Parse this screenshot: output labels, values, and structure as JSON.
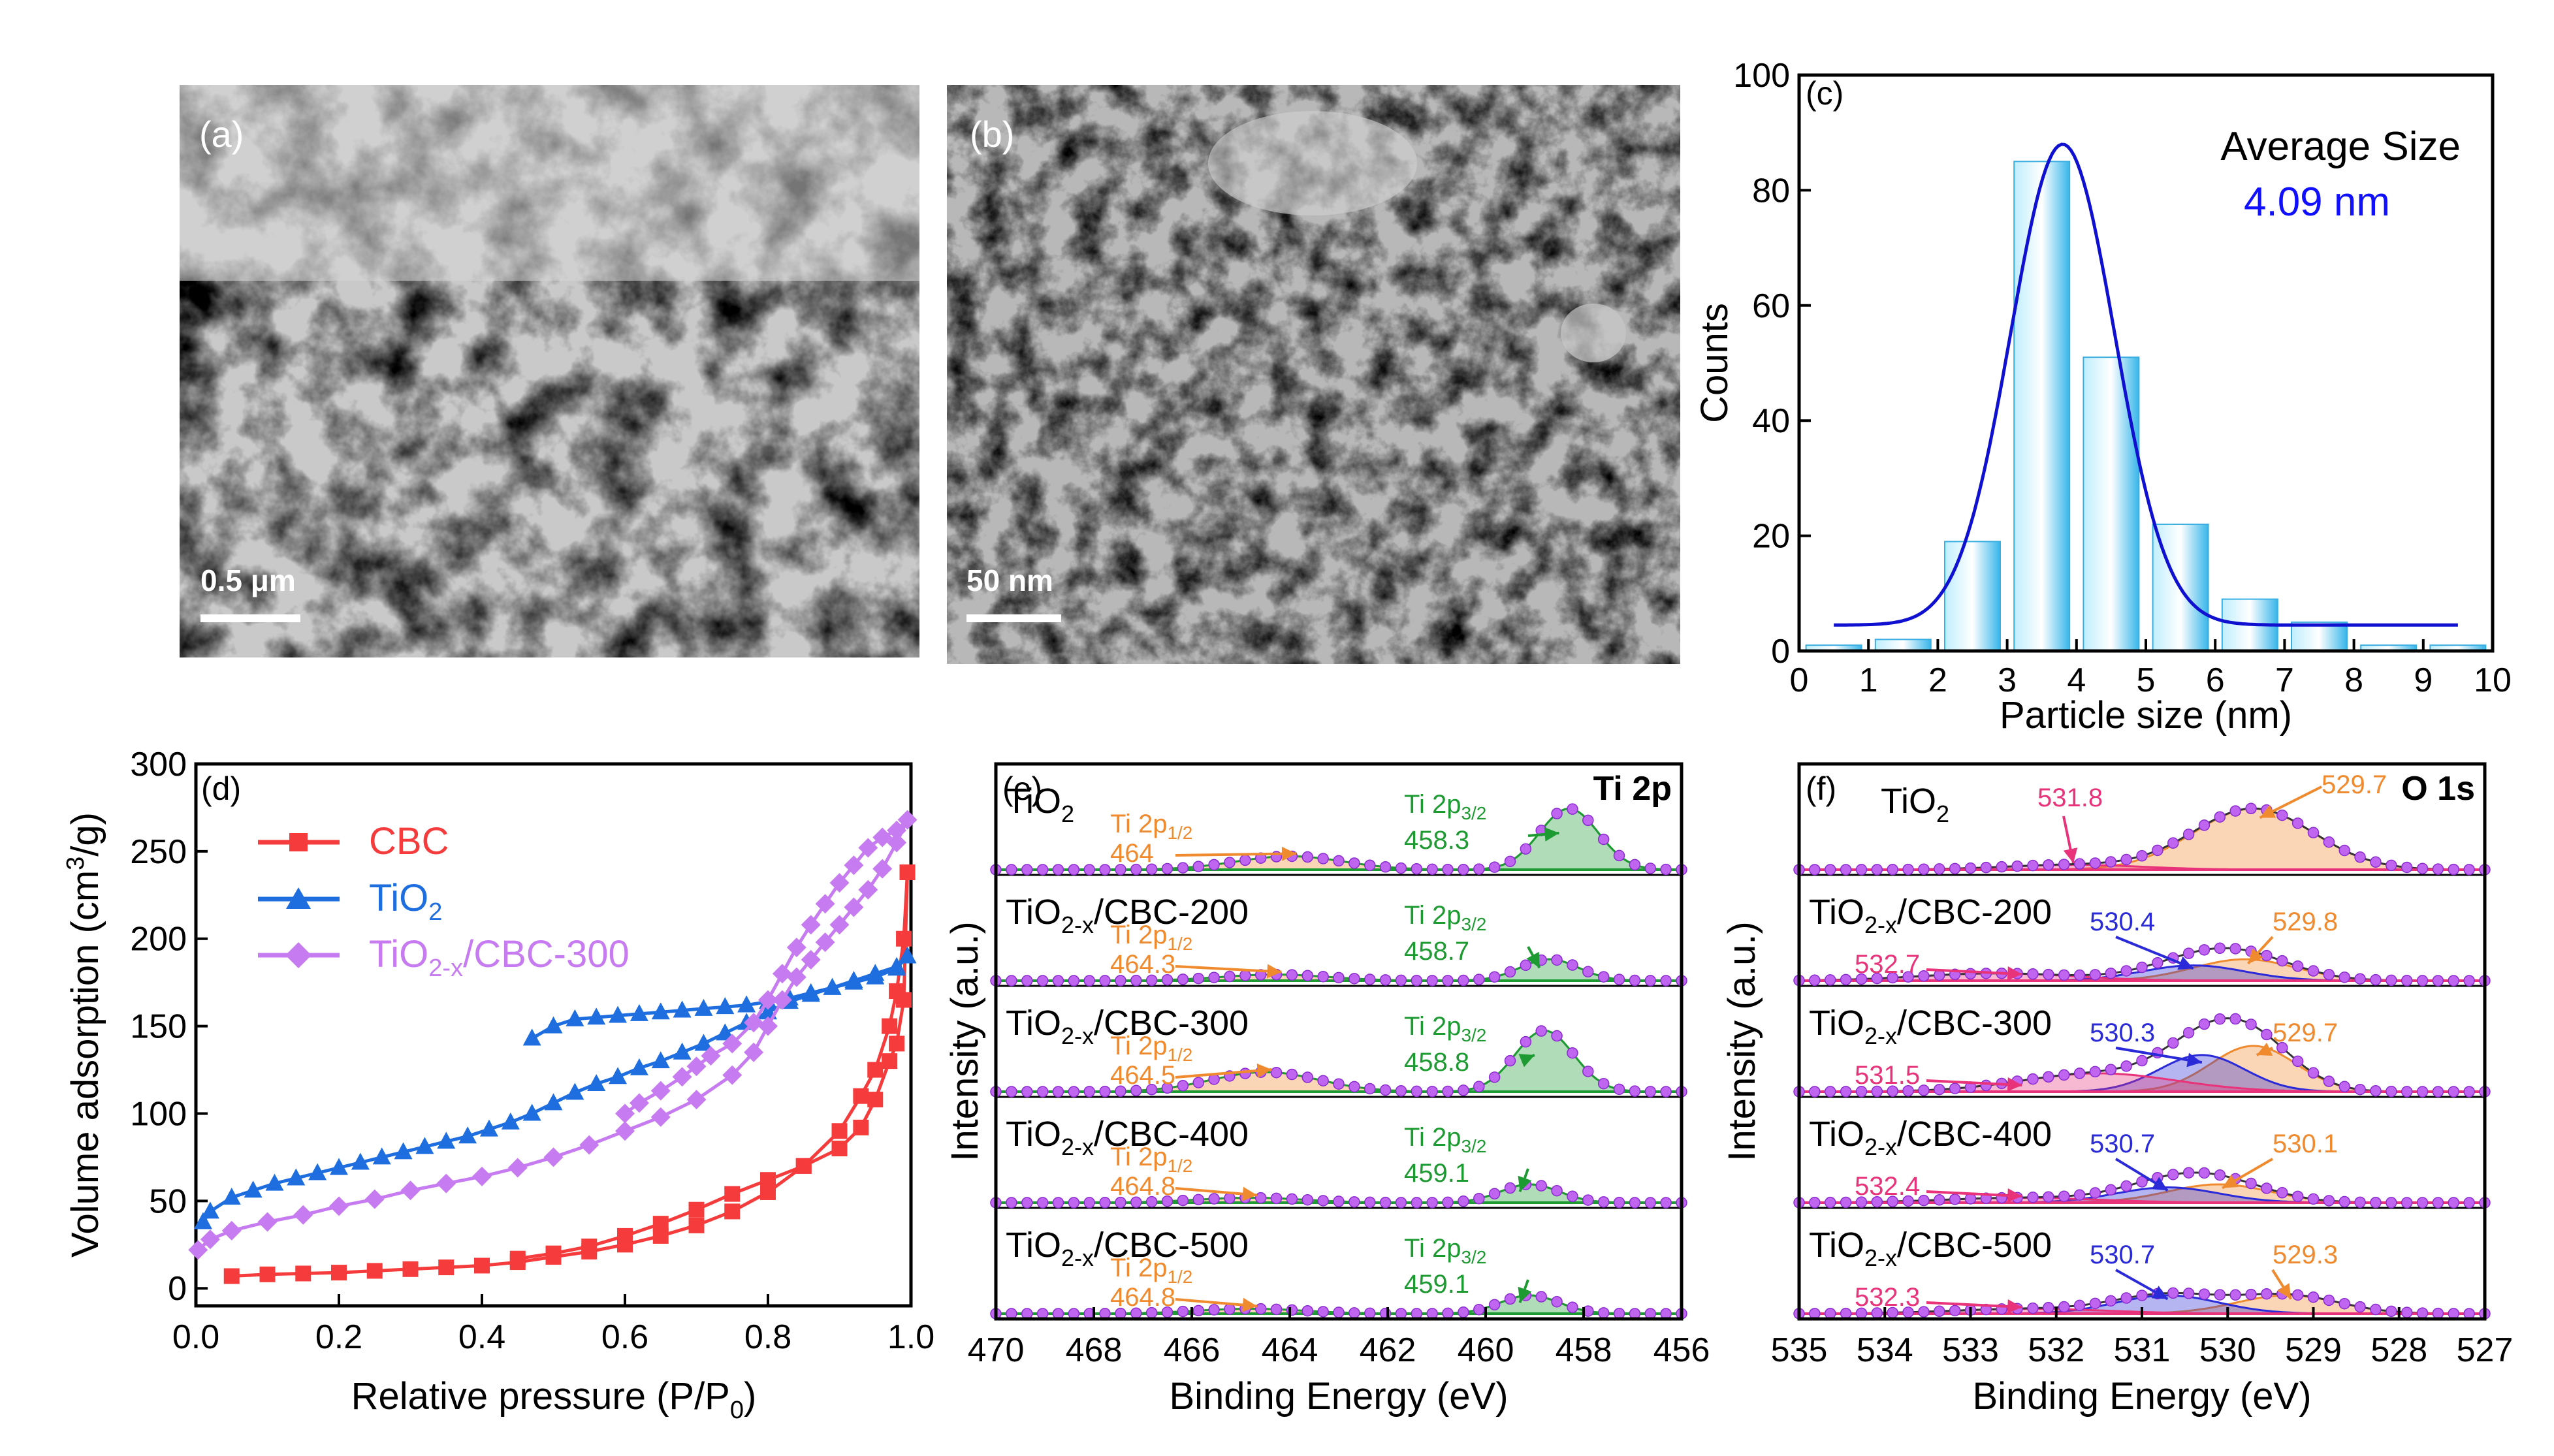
{
  "panels": {
    "a": {
      "label": "(a)",
      "scale_bar": "0.5 μm"
    },
    "b": {
      "label": "(b)",
      "scale_bar": "50 nm"
    },
    "c": {
      "label": "(c)",
      "annotation_title": "Average Size",
      "annotation_value": "4.09 nm"
    },
    "d": {
      "label": "(d)",
      "legend": {
        "cbc": "CBC",
        "tio2_main": "TiO",
        "tio2_sub": "2",
        "comp_a": "TiO",
        "comp_sub": "2-x",
        "comp_b": "/CBC-300"
      }
    },
    "e": {
      "label": "(e)",
      "region": "Ti 2p",
      "rows": [
        {
          "name_main": "TiO",
          "name_sub": "2",
          "name_tail": "",
          "p12_value": "464",
          "p32_value": "458.3"
        },
        {
          "name_main": "TiO",
          "name_sub": "2-x",
          "name_tail": "/CBC-200",
          "p12_value": "464.3",
          "p32_value": "458.7"
        },
        {
          "name_main": "TiO",
          "name_sub": "2-x",
          "name_tail": "/CBC-300",
          "p12_value": "464.5",
          "p32_value": "458.8"
        },
        {
          "name_main": "TiO",
          "name_sub": "2-x",
          "name_tail": "/CBC-400",
          "p12_value": "464.8",
          "p32_value": "459.1"
        },
        {
          "name_main": "TiO",
          "name_sub": "2-x",
          "name_tail": "/CBC-500",
          "p12_value": "464.8",
          "p32_value": "459.1"
        }
      ],
      "p12_prefix": "Ti 2p",
      "p12_sub": "1/2",
      "p32_prefix": "Ti 2p",
      "p32_sub": "3/2"
    },
    "f": {
      "label": "(f)",
      "region": "O 1s",
      "rows": [
        {
          "name_main": "TiO",
          "name_sub": "2",
          "name_tail": "",
          "oh": "531.8",
          "ov": "",
          "lat": "529.7"
        },
        {
          "name_main": "TiO",
          "name_sub": "2-x",
          "name_tail": "/CBC-200",
          "oh": "532.7",
          "ov": "530.4",
          "lat": "529.8"
        },
        {
          "name_main": "TiO",
          "name_sub": "2-x",
          "name_tail": "/CBC-300",
          "oh": "531.5",
          "ov": "530.3",
          "lat": "529.7"
        },
        {
          "name_main": "TiO",
          "name_sub": "2-x",
          "name_tail": "/CBC-400",
          "oh": "532.4",
          "ov": "530.7",
          "lat": "530.1"
        },
        {
          "name_main": "TiO",
          "name_sub": "2-x",
          "name_tail": "/CBC-500",
          "oh": "532.3",
          "ov": "530.7",
          "lat": "529.3"
        }
      ]
    }
  },
  "chart_data": [
    {
      "id": "c",
      "type": "bar",
      "xlabel": "Particle size (nm)",
      "ylabel": "Counts",
      "xlim": [
        0,
        10
      ],
      "ylim": [
        0,
        100
      ],
      "xticks": [
        0,
        1,
        2,
        3,
        4,
        5,
        6,
        7,
        8,
        9,
        10
      ],
      "yticks": [
        0,
        20,
        40,
        60,
        80,
        100
      ],
      "bin_centers": [
        0.5,
        1.5,
        2.5,
        3.5,
        4.5,
        5.5,
        6.5,
        7.5,
        8.5,
        9.5
      ],
      "values": [
        1,
        2,
        19,
        85,
        51,
        22,
        9,
        5,
        1,
        1
      ],
      "fit": {
        "type": "gaussian",
        "center": 3.8,
        "sigma": 0.75,
        "amplitude": 83.5,
        "offset": 4.5
      },
      "colors": {
        "bar": "#5ec8ee",
        "fit": "#1010d0",
        "annotation_value": "#1010ff"
      }
    },
    {
      "id": "d",
      "type": "line",
      "xlabel": "Relative pressure (P/P0)",
      "ylabel": "Volume adsorption (cm3/g)",
      "xlim": [
        0.0,
        1.0
      ],
      "ylim": [
        -10,
        300
      ],
      "xticks": [
        0.0,
        0.2,
        0.4,
        0.6,
        0.8,
        1.0
      ],
      "yticks": [
        0,
        50,
        100,
        150,
        200,
        250,
        300
      ],
      "series": [
        {
          "name": "CBC",
          "color": "#f53b3b",
          "marker": "square",
          "x": [
            0.05,
            0.1,
            0.15,
            0.2,
            0.25,
            0.3,
            0.35,
            0.4,
            0.45,
            0.5,
            0.55,
            0.6,
            0.65,
            0.7,
            0.75,
            0.8,
            0.85,
            0.9,
            0.93,
            0.95,
            0.97,
            0.98,
            0.99,
            0.995,
            0.995,
            0.99,
            0.98,
            0.97,
            0.95,
            0.93,
            0.9,
            0.85,
            0.8,
            0.75,
            0.7,
            0.65,
            0.6,
            0.55,
            0.5,
            0.45
          ],
          "y": [
            7,
            8,
            8.5,
            9,
            10,
            11,
            12,
            13,
            15,
            18,
            21,
            25,
            30,
            36,
            44,
            55,
            70,
            90,
            110,
            125,
            150,
            170,
            200,
            238,
            238,
            165,
            140,
            130,
            108,
            92,
            80,
            70,
            62,
            54,
            45,
            37,
            30,
            24,
            20,
            17
          ]
        },
        {
          "name": "TiO2",
          "color": "#1f6ee0",
          "marker": "triangle",
          "x": [
            0.01,
            0.02,
            0.05,
            0.08,
            0.11,
            0.14,
            0.17,
            0.2,
            0.23,
            0.26,
            0.29,
            0.32,
            0.35,
            0.38,
            0.41,
            0.44,
            0.47,
            0.5,
            0.53,
            0.56,
            0.59,
            0.62,
            0.65,
            0.68,
            0.71,
            0.74,
            0.77,
            0.8,
            0.83,
            0.86,
            0.89,
            0.92,
            0.95,
            0.98,
            0.995,
            0.98,
            0.95,
            0.92,
            0.89,
            0.86,
            0.83,
            0.8,
            0.77,
            0.74,
            0.71,
            0.68,
            0.65,
            0.62,
            0.59,
            0.56,
            0.53,
            0.5,
            0.47
          ],
          "y": [
            38,
            44,
            52,
            56,
            60,
            63,
            66,
            69,
            72,
            75,
            78,
            81,
            84,
            87,
            91,
            95,
            100,
            106,
            112,
            117,
            121,
            126,
            130,
            135,
            140,
            146,
            152,
            158,
            164,
            168,
            172,
            176,
            180,
            184,
            190,
            183,
            178,
            175,
            172,
            169,
            166,
            164,
            162,
            161,
            160,
            159,
            158,
            157,
            156,
            155,
            154,
            150,
            143
          ]
        },
        {
          "name": "TiO2-x/CBC-300",
          "color": "#c77bf0",
          "marker": "diamond",
          "x": [
            0.003,
            0.02,
            0.05,
            0.1,
            0.15,
            0.2,
            0.25,
            0.3,
            0.35,
            0.4,
            0.45,
            0.5,
            0.55,
            0.6,
            0.65,
            0.7,
            0.75,
            0.78,
            0.8,
            0.82,
            0.84,
            0.86,
            0.88,
            0.9,
            0.92,
            0.94,
            0.96,
            0.98,
            0.995,
            0.98,
            0.96,
            0.94,
            0.92,
            0.9,
            0.88,
            0.86,
            0.84,
            0.82,
            0.8,
            0.78,
            0.75,
            0.72,
            0.7,
            0.68,
            0.65,
            0.62,
            0.6
          ],
          "y": [
            22,
            28,
            33,
            38,
            42,
            47,
            51,
            56,
            60,
            64,
            69,
            75,
            82,
            90,
            98,
            108,
            122,
            135,
            150,
            165,
            178,
            188,
            198,
            208,
            218,
            228,
            240,
            255,
            268,
            262,
            258,
            252,
            242,
            232,
            220,
            208,
            195,
            180,
            165,
            152,
            140,
            133,
            127,
            121,
            113,
            106,
            100
          ]
        }
      ]
    },
    {
      "id": "e",
      "type": "line",
      "xlabel": "Binding Energy (eV)",
      "ylabel": "Intensity (a.u.)",
      "xlim": [
        470,
        456
      ],
      "xticks": [
        470,
        468,
        466,
        464,
        462,
        460,
        458,
        456
      ],
      "series": [
        {
          "name": "TiO2",
          "peaks": [
            {
              "center": 458.3,
              "sigma": 0.6,
              "height": 1.0
            },
            {
              "center": 464.0,
              "sigma": 1.1,
              "height": 0.22
            }
          ]
        },
        {
          "name": "TiO2-x/CBC-200",
          "peaks": [
            {
              "center": 458.7,
              "sigma": 0.6,
              "height": 0.35
            },
            {
              "center": 464.3,
              "sigma": 1.1,
              "height": 0.1
            }
          ]
        },
        {
          "name": "TiO2-x/CBC-300",
          "peaks": [
            {
              "center": 458.8,
              "sigma": 0.6,
              "height": 1.0
            },
            {
              "center": 464.5,
              "sigma": 1.1,
              "height": 0.32
            }
          ]
        },
        {
          "name": "TiO2-x/CBC-400",
          "peaks": [
            {
              "center": 459.1,
              "sigma": 0.6,
              "height": 0.3
            },
            {
              "center": 464.8,
              "sigma": 1.1,
              "height": 0.08
            }
          ]
        },
        {
          "name": "TiO2-x/CBC-500",
          "peaks": [
            {
              "center": 459.1,
              "sigma": 0.6,
              "height": 0.3
            },
            {
              "center": 464.8,
              "sigma": 1.1,
              "height": 0.08
            }
          ]
        }
      ]
    },
    {
      "id": "f",
      "type": "line",
      "xlabel": "Binding Energy (eV)",
      "ylabel": "Intensity (a.u.)",
      "xlim": [
        535,
        527
      ],
      "xticks": [
        535,
        534,
        533,
        532,
        531,
        530,
        529,
        528,
        527
      ],
      "series": [
        {
          "name": "TiO2",
          "peaks": [
            {
              "center": 529.7,
              "sigma": 0.7,
              "height": 1.0,
              "color": "#f08a2e"
            },
            {
              "center": 531.8,
              "sigma": 0.8,
              "height": 0.08,
              "color": "#e8337a"
            }
          ]
        },
        {
          "name": "TiO2-x/CBC-200",
          "peaks": [
            {
              "center": 529.8,
              "sigma": 0.6,
              "height": 0.35,
              "color": "#f08a2e"
            },
            {
              "center": 530.4,
              "sigma": 0.6,
              "height": 0.25,
              "color": "#2a2ad8"
            },
            {
              "center": 532.7,
              "sigma": 0.9,
              "height": 0.12,
              "color": "#e8337a"
            }
          ]
        },
        {
          "name": "TiO2-x/CBC-300",
          "peaks": [
            {
              "center": 529.7,
              "sigma": 0.5,
              "height": 0.75,
              "color": "#f08a2e"
            },
            {
              "center": 530.3,
              "sigma": 0.5,
              "height": 0.6,
              "color": "#2a2ad8"
            },
            {
              "center": 531.5,
              "sigma": 0.9,
              "height": 0.3,
              "color": "#e8337a"
            }
          ]
        },
        {
          "name": "TiO2-x/CBC-400",
          "peaks": [
            {
              "center": 530.1,
              "sigma": 0.6,
              "height": 0.3,
              "color": "#f08a2e"
            },
            {
              "center": 530.7,
              "sigma": 0.6,
              "height": 0.25,
              "color": "#2a2ad8"
            },
            {
              "center": 532.4,
              "sigma": 0.9,
              "height": 0.08,
              "color": "#e8337a"
            }
          ]
        },
        {
          "name": "TiO2-x/CBC-500",
          "peaks": [
            {
              "center": 529.3,
              "sigma": 0.6,
              "height": 0.3,
              "color": "#f08a2e"
            },
            {
              "center": 530.7,
              "sigma": 0.6,
              "height": 0.3,
              "color": "#2a2ad8"
            },
            {
              "center": 532.3,
              "sigma": 0.9,
              "height": 0.08,
              "color": "#e8337a"
            }
          ]
        }
      ]
    }
  ]
}
